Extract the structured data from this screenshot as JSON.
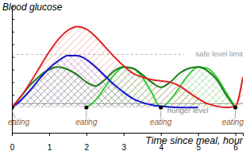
{
  "chart_data": {
    "type": "area",
    "title": "Blood glucose",
    "x_label": "Time since meal, hour",
    "xlim": [
      0,
      6.2
    ],
    "xticks": [
      0,
      1,
      2,
      3,
      4,
      5,
      6
    ],
    "ylim": [
      0,
      10
    ],
    "yticks": [
      0,
      1,
      2,
      3,
      4,
      5,
      6,
      7,
      8,
      9,
      10
    ],
    "tick_labels": "x",
    "grid": false,
    "series": [
      {
        "color": "#dd2222",
        "x": [
          0,
          0.25,
          0.5,
          0.75,
          1,
          1.25,
          1.5,
          1.75,
          2,
          2.25,
          2.5,
          2.75,
          3,
          3.25,
          3.5,
          3.75,
          4,
          4.25,
          4.5,
          4.75,
          5,
          5.25,
          5.5,
          5.75,
          6,
          6.2
        ],
        "values": [
          2,
          2.9,
          4.0,
          5.2,
          6.4,
          7.4,
          8.1,
          8.4,
          8.2,
          7.6,
          6.8,
          6.0,
          5.3,
          4.7,
          4.4,
          4.2,
          4.1,
          4.0,
          3.7,
          3.2,
          2.7,
          2.3,
          2.1,
          2.0,
          2.1,
          4.4
        ]
      },
      {
        "color": "#1414cc",
        "x": [
          0,
          0.25,
          0.5,
          0.75,
          1,
          1.25,
          1.5,
          1.75,
          2,
          2.25,
          2.5,
          2.75,
          3,
          3.25,
          3.5,
          3.75,
          4,
          4.5,
          5
        ],
        "values": [
          2,
          2.6,
          3.4,
          4.3,
          5.1,
          5.7,
          6.1,
          6.1,
          5.8,
          5.2,
          4.5,
          3.8,
          3.2,
          2.7,
          2.4,
          2.2,
          2.1,
          2.0,
          2.0
        ]
      },
      {
        "color": "#1a7a1a",
        "x": [
          0,
          0.25,
          0.5,
          0.75,
          1,
          1.25,
          1.5,
          1.75,
          2,
          2.25,
          2.5,
          2.75,
          3,
          3.25,
          3.5,
          3.75,
          4,
          4.25,
          4.5,
          4.75,
          5,
          5.25,
          5.5,
          5.75,
          6
        ],
        "values": [
          2,
          2.9,
          3.8,
          4.5,
          5.0,
          5.2,
          5.0,
          4.6,
          4.0,
          3.7,
          4.2,
          4.9,
          5.2,
          5.1,
          4.6,
          4.0,
          3.6,
          4.0,
          4.7,
          5.1,
          5.2,
          4.9,
          4.2,
          3.0,
          2.0
        ]
      },
      {
        "color": "#33cc33",
        "x": [
          2,
          2.25,
          2.5,
          2.75,
          3,
          3.25,
          3.5,
          3.75,
          4,
          4.25,
          4.5,
          4.75,
          5,
          5.25,
          5.5,
          5.75,
          6
        ],
        "values": [
          2,
          2.6,
          3.6,
          4.6,
          5.2,
          5.1,
          4.4,
          3.2,
          2.0,
          2.6,
          3.6,
          4.6,
          5.2,
          5.1,
          4.4,
          3.2,
          2.0
        ]
      }
    ],
    "hlines": [
      {
        "label": "safe level limit",
        "y": 6.2
      },
      {
        "label": "hunger level",
        "y": 2.3
      }
    ],
    "annotations": [
      {
        "text": "eating",
        "x": 0,
        "y": 2
      },
      {
        "text": "eating",
        "x": 2,
        "y": 2
      },
      {
        "text": "eating",
        "x": 4,
        "y": 2
      },
      {
        "text": "eating",
        "x": 6,
        "y": 2
      }
    ]
  }
}
